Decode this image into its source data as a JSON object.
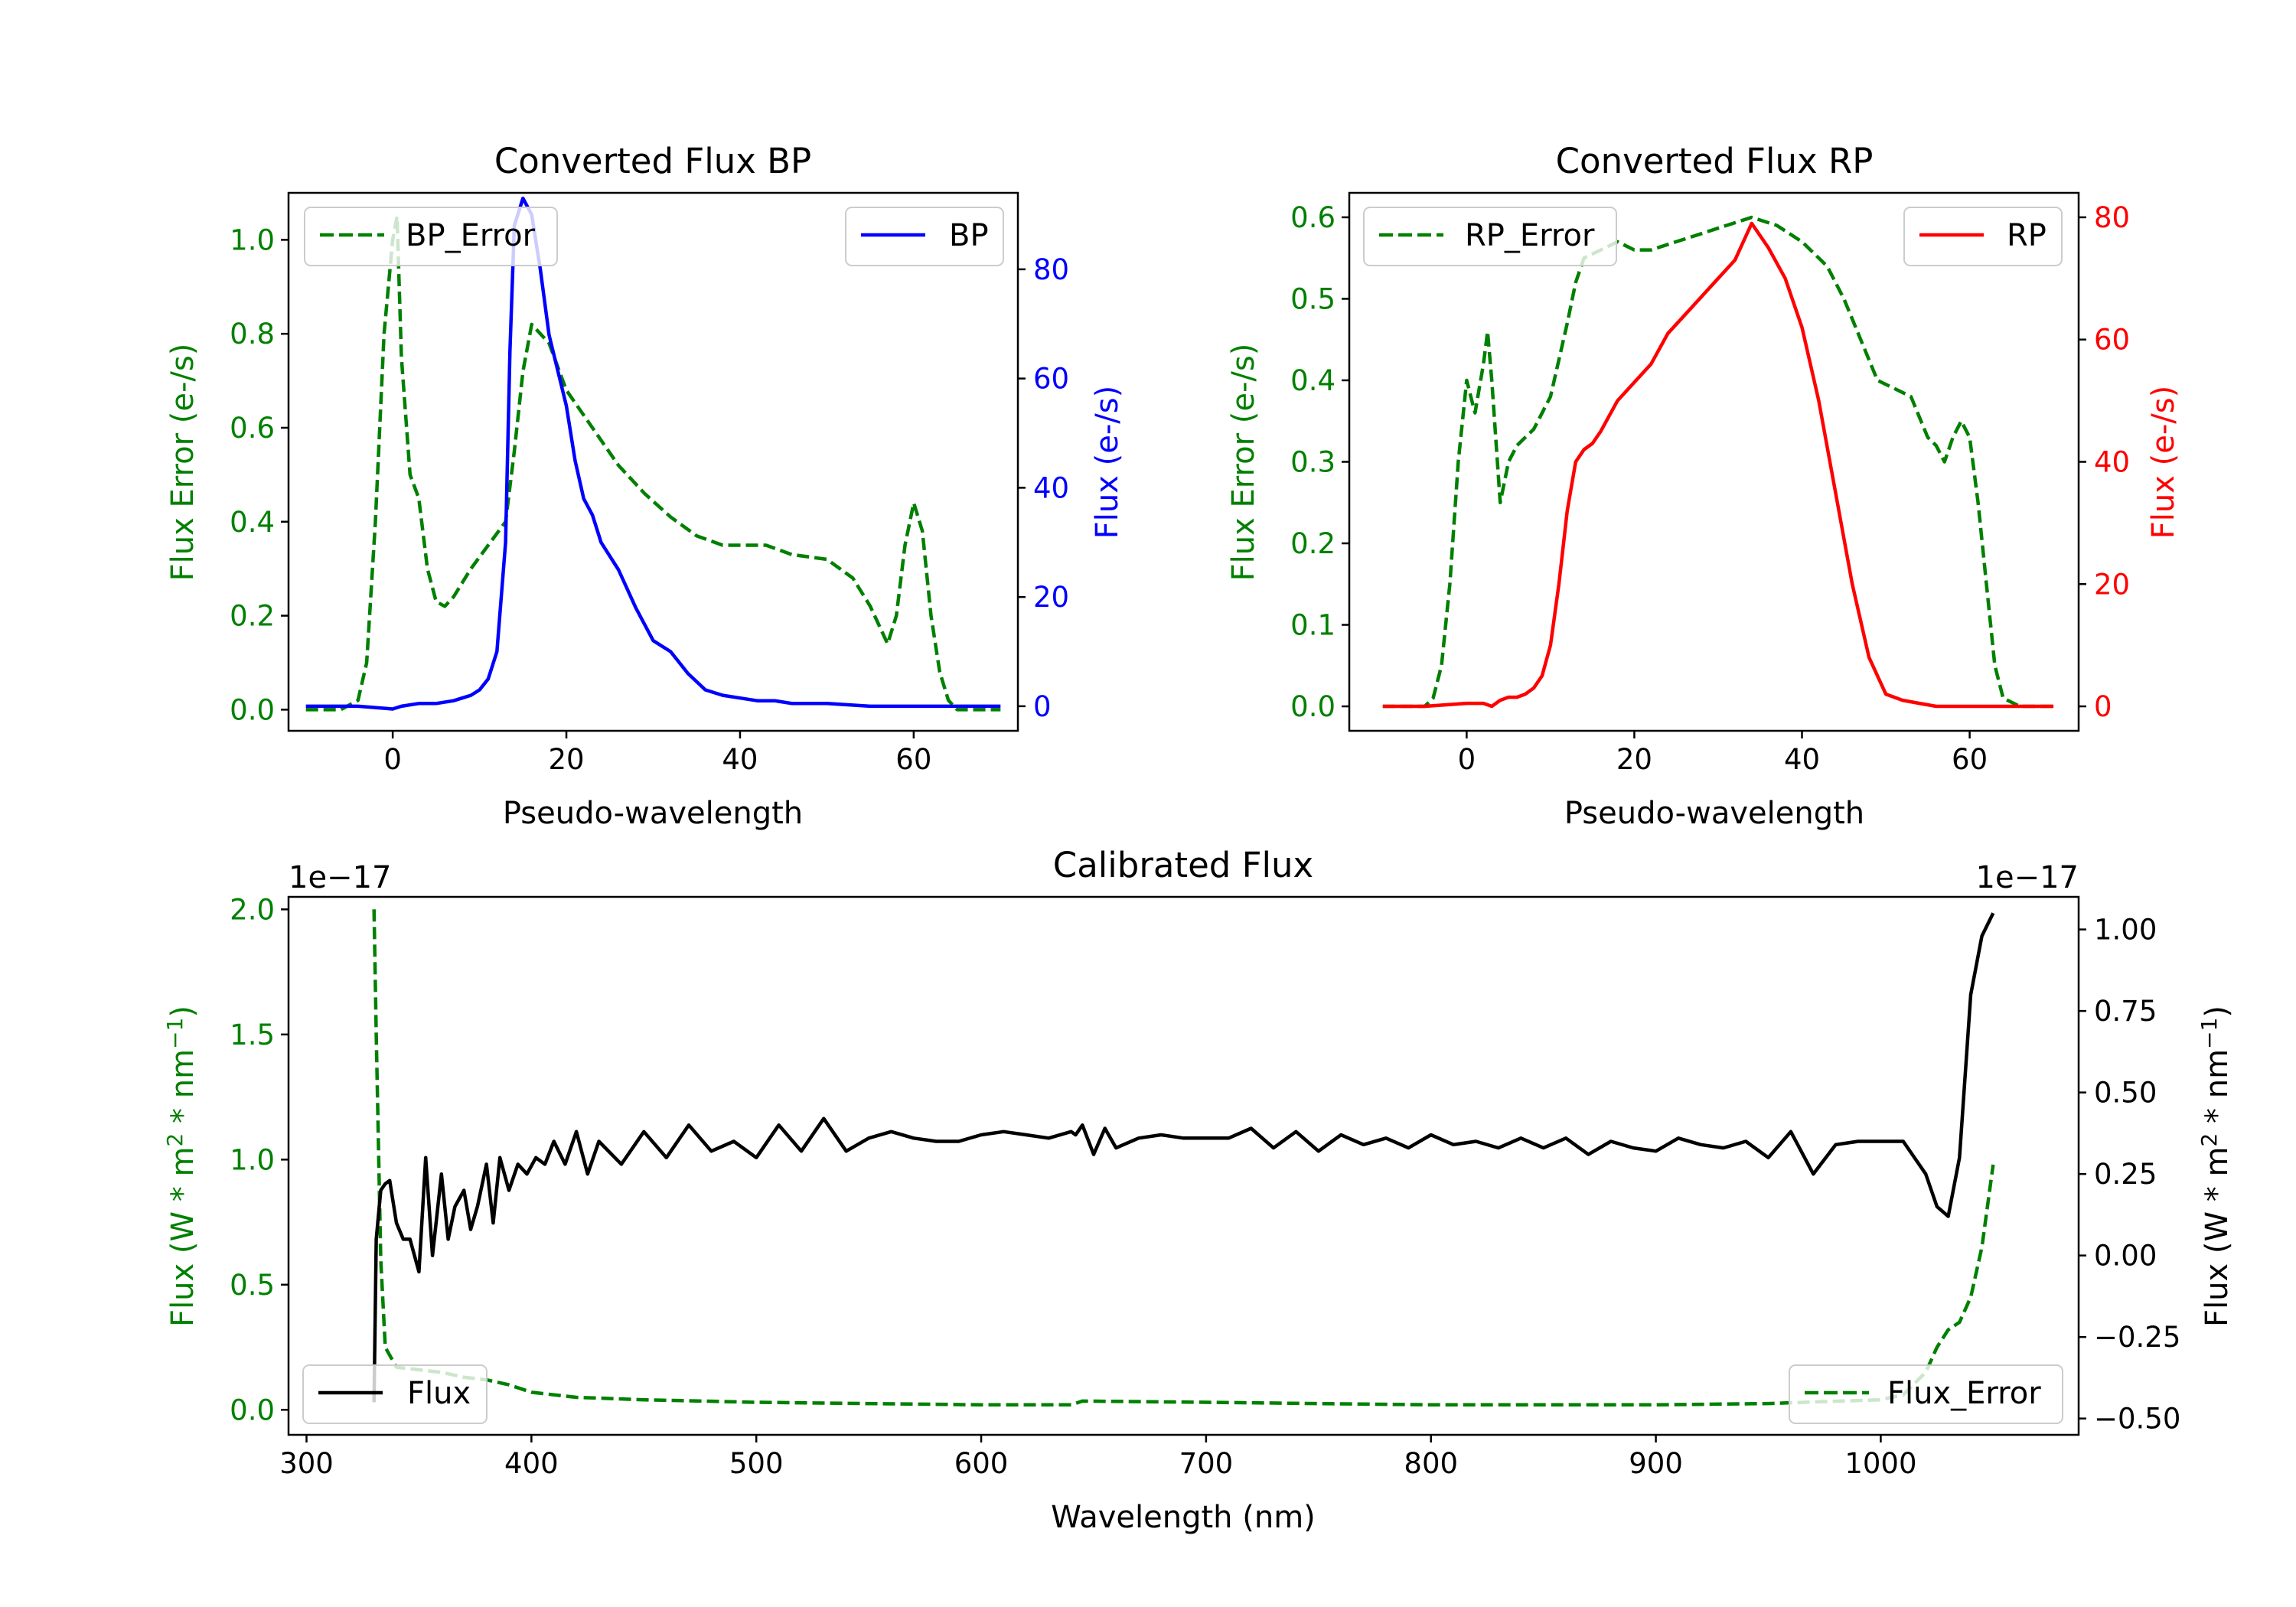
{
  "colors": {
    "error": "#008000",
    "bp": "#0000ff",
    "rp": "#ff0000",
    "flux": "#000000",
    "axis": "#000000"
  },
  "chart_data": [
    {
      "id": "bp",
      "type": "line",
      "title": "Converted Flux BP",
      "xlabel": "Pseudo-wavelength",
      "xlim": [
        -12,
        72
      ],
      "xticks": [
        0,
        20,
        40,
        60
      ],
      "left": {
        "ylabel": "Flux Error (e-/s)",
        "ylim": [
          -0.045,
          1.1
        ],
        "ticks": [
          0.0,
          0.2,
          0.4,
          0.6,
          0.8,
          1.0
        ],
        "tick_labels": [
          "0.0",
          "0.2",
          "0.4",
          "0.6",
          "0.8",
          "1.0"
        ],
        "color_key": "error"
      },
      "right": {
        "ylabel": "Flux (e-/s)",
        "ylim": [
          -4.5,
          94
        ],
        "ticks": [
          0,
          20,
          40,
          60,
          80
        ],
        "tick_labels": [
          "0",
          "20",
          "40",
          "60",
          "80"
        ],
        "color_key": "bp"
      },
      "series": [
        {
          "name": "BP_Error",
          "axis": "left",
          "color_key": "error",
          "style": "dashed",
          "legend": "top-left",
          "x": [
            -10,
            -6,
            -4,
            -3,
            -2,
            -1,
            0,
            0.5,
            1,
            2,
            3,
            4,
            5,
            6,
            7,
            9,
            11,
            13,
            14,
            15,
            16,
            18,
            20,
            23,
            26,
            29,
            32,
            35,
            38,
            40,
            43,
            46,
            50,
            53,
            55,
            56,
            57,
            58,
            59,
            60,
            61,
            62,
            63,
            64,
            65,
            67,
            70
          ],
          "y": [
            0,
            0,
            0.02,
            0.1,
            0.4,
            0.8,
            1.0,
            1.05,
            0.75,
            0.5,
            0.45,
            0.3,
            0.23,
            0.22,
            0.24,
            0.3,
            0.35,
            0.4,
            0.55,
            0.72,
            0.82,
            0.78,
            0.68,
            0.6,
            0.52,
            0.46,
            0.41,
            0.37,
            0.35,
            0.35,
            0.35,
            0.33,
            0.32,
            0.28,
            0.22,
            0.18,
            0.14,
            0.2,
            0.35,
            0.44,
            0.38,
            0.2,
            0.08,
            0.02,
            0,
            0,
            0
          ]
        },
        {
          "name": "BP",
          "axis": "right",
          "color_key": "bp",
          "style": "solid",
          "legend": "top-right",
          "x": [
            -10,
            -4,
            0,
            1,
            3,
            5,
            7,
            8,
            9,
            10,
            11,
            12,
            13,
            13.5,
            14,
            15,
            16,
            17,
            18,
            20,
            21,
            22,
            23,
            24,
            26,
            28,
            30,
            32,
            34,
            36,
            38,
            40,
            42,
            44,
            46,
            50,
            55,
            60,
            65,
            70
          ],
          "y": [
            0,
            0,
            -0.5,
            0,
            0.5,
            0.5,
            1,
            1.5,
            2,
            3,
            5,
            10,
            30,
            65,
            88,
            93,
            90,
            80,
            68,
            55,
            45,
            38,
            35,
            30,
            25,
            18,
            12,
            10,
            6,
            3,
            2,
            1.5,
            1,
            1,
            0.5,
            0.5,
            0,
            0,
            0,
            0
          ]
        }
      ]
    },
    {
      "id": "rp",
      "type": "line",
      "title": "Converted Flux RP",
      "xlabel": "Pseudo-wavelength",
      "xlim": [
        -14,
        73
      ],
      "xticks": [
        0,
        20,
        40,
        60
      ],
      "left": {
        "ylabel": "Flux Error (e-/s)",
        "ylim": [
          -0.03,
          0.63
        ],
        "ticks": [
          0.0,
          0.1,
          0.2,
          0.3,
          0.4,
          0.5,
          0.6
        ],
        "tick_labels": [
          "0.0",
          "0.1",
          "0.2",
          "0.3",
          "0.4",
          "0.5",
          "0.6"
        ],
        "color_key": "error"
      },
      "right": {
        "ylabel": "Flux (e-/s)",
        "ylim": [
          -4,
          84
        ],
        "ticks": [
          0,
          20,
          40,
          60,
          80
        ],
        "tick_labels": [
          "0",
          "20",
          "40",
          "60",
          "80"
        ],
        "color_key": "rp"
      },
      "series": [
        {
          "name": "RP_Error",
          "axis": "left",
          "color_key": "error",
          "style": "dashed",
          "legend": "top-left",
          "x": [
            -10,
            -5,
            -4,
            -3,
            -2,
            -1,
            0,
            0.5,
            1,
            2,
            2.5,
            3,
            4,
            5,
            6,
            7,
            8,
            10,
            12,
            13,
            14,
            16,
            18,
            20,
            22,
            25,
            28,
            31,
            34,
            37,
            40,
            43,
            45,
            47,
            49,
            51,
            53,
            55,
            56,
            57,
            58,
            59,
            60,
            61,
            62,
            63,
            64,
            66,
            70
          ],
          "y": [
            0,
            0,
            0.01,
            0.05,
            0.15,
            0.3,
            0.4,
            0.38,
            0.36,
            0.42,
            0.46,
            0.4,
            0.25,
            0.3,
            0.32,
            0.33,
            0.34,
            0.38,
            0.47,
            0.52,
            0.55,
            0.56,
            0.57,
            0.56,
            0.56,
            0.57,
            0.58,
            0.59,
            0.6,
            0.59,
            0.57,
            0.54,
            0.5,
            0.45,
            0.4,
            0.39,
            0.38,
            0.33,
            0.32,
            0.3,
            0.33,
            0.35,
            0.33,
            0.25,
            0.15,
            0.05,
            0.01,
            0,
            0
          ]
        },
        {
          "name": "RP",
          "axis": "right",
          "color_key": "rp",
          "style": "solid",
          "legend": "top-right",
          "x": [
            -10,
            -5,
            0,
            2,
            3,
            4,
            5,
            6,
            7,
            8,
            9,
            10,
            11,
            12,
            13,
            14,
            15,
            16,
            18,
            20,
            22,
            24,
            26,
            28,
            30,
            32,
            34,
            36,
            38,
            40,
            42,
            44,
            46,
            48,
            50,
            52,
            54,
            56,
            58,
            60,
            65,
            70
          ],
          "y": [
            0,
            0,
            0.5,
            0.5,
            0,
            1,
            1.5,
            1.5,
            2,
            3,
            5,
            10,
            20,
            32,
            40,
            42,
            43,
            45,
            50,
            53,
            56,
            61,
            64,
            67,
            70,
            73,
            79,
            75,
            70,
            62,
            50,
            35,
            20,
            8,
            2,
            1,
            0.5,
            0,
            0,
            0,
            0,
            0
          ]
        }
      ]
    },
    {
      "id": "calibrated",
      "type": "line",
      "title": "Calibrated Flux",
      "xlabel": "Wavelength (nm)",
      "xlim": [
        292,
        1088
      ],
      "xticks": [
        300,
        400,
        500,
        600,
        700,
        800,
        900,
        1000
      ],
      "left": {
        "ylabel": "Flux (W * m² * nm⁻¹)",
        "ylim": [
          -0.1,
          2.05
        ],
        "ticks": [
          0.0,
          0.5,
          1.0,
          1.5,
          2.0
        ],
        "tick_labels": [
          "0.0",
          "0.5",
          "1.0",
          "1.5",
          "2.0"
        ],
        "offset_text": "1e−17",
        "color_key": "error"
      },
      "right": {
        "ylabel": "Flux (W * m² * nm⁻¹)",
        "ylim": [
          -0.55,
          1.1
        ],
        "ticks": [
          1.0,
          0.75,
          0.5,
          0.25,
          0.0,
          -0.25,
          -0.5
        ],
        "tick_labels": [
          "1.00",
          "0.75",
          "0.50",
          "0.25",
          "0.00",
          "−0.25",
          "−0.50"
        ],
        "offset_text": "1e−17",
        "color_key": "flux"
      },
      "series": [
        {
          "name": "Flux_Error",
          "axis": "left",
          "color_key": "error",
          "style": "dashed",
          "legend": "bottom-right",
          "x": [
            330,
            331,
            333,
            335,
            340,
            350,
            360,
            370,
            380,
            390,
            400,
            420,
            450,
            500,
            600,
            640,
            645,
            700,
            800,
            900,
            950,
            1000,
            1010,
            1020,
            1025,
            1030,
            1035,
            1040,
            1045,
            1050
          ],
          "y": [
            2.0,
            1.5,
            0.6,
            0.25,
            0.17,
            0.16,
            0.15,
            0.13,
            0.12,
            0.1,
            0.07,
            0.05,
            0.04,
            0.03,
            0.02,
            0.02,
            0.035,
            0.03,
            0.02,
            0.02,
            0.025,
            0.04,
            0.06,
            0.15,
            0.25,
            0.32,
            0.35,
            0.45,
            0.65,
            0.98
          ]
        },
        {
          "name": "Flux",
          "axis": "right",
          "color_key": "flux",
          "style": "solid",
          "legend": "bottom-left",
          "x": [
            330,
            331,
            333,
            335,
            337,
            340,
            343,
            346,
            350,
            353,
            356,
            360,
            363,
            366,
            370,
            373,
            376,
            380,
            383,
            386,
            390,
            394,
            398,
            402,
            406,
            410,
            415,
            420,
            425,
            430,
            440,
            450,
            460,
            470,
            480,
            490,
            500,
            510,
            520,
            530,
            540,
            550,
            560,
            570,
            580,
            590,
            600,
            610,
            620,
            630,
            640,
            642,
            645,
            650,
            655,
            660,
            670,
            680,
            690,
            700,
            710,
            720,
            730,
            740,
            750,
            760,
            770,
            780,
            790,
            800,
            810,
            820,
            830,
            840,
            850,
            860,
            870,
            880,
            890,
            900,
            910,
            920,
            930,
            940,
            950,
            960,
            970,
            980,
            990,
            1000,
            1010,
            1020,
            1025,
            1030,
            1035,
            1040,
            1045,
            1050
          ],
          "y": [
            -0.45,
            0.05,
            0.2,
            0.22,
            0.23,
            0.1,
            0.05,
            0.05,
            -0.05,
            0.3,
            0.0,
            0.25,
            0.05,
            0.15,
            0.2,
            0.08,
            0.15,
            0.28,
            0.1,
            0.3,
            0.2,
            0.28,
            0.25,
            0.3,
            0.28,
            0.35,
            0.28,
            0.38,
            0.25,
            0.35,
            0.28,
            0.38,
            0.3,
            0.4,
            0.32,
            0.35,
            0.3,
            0.4,
            0.32,
            0.42,
            0.32,
            0.36,
            0.38,
            0.36,
            0.35,
            0.35,
            0.37,
            0.38,
            0.37,
            0.36,
            0.38,
            0.37,
            0.4,
            0.31,
            0.39,
            0.33,
            0.36,
            0.37,
            0.36,
            0.36,
            0.36,
            0.39,
            0.33,
            0.38,
            0.32,
            0.37,
            0.34,
            0.36,
            0.33,
            0.37,
            0.34,
            0.35,
            0.33,
            0.36,
            0.33,
            0.36,
            0.31,
            0.35,
            0.33,
            0.32,
            0.36,
            0.34,
            0.33,
            0.35,
            0.3,
            0.38,
            0.25,
            0.34,
            0.35,
            0.35,
            0.35,
            0.25,
            0.15,
            0.12,
            0.3,
            0.8,
            0.98,
            1.05
          ]
        }
      ]
    }
  ]
}
